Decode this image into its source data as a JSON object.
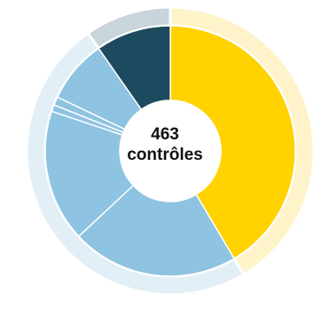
{
  "center": {
    "value": "463",
    "unit": "contrôles"
  },
  "colors": {
    "yellow": "#FFD200",
    "yellow_ring": "#FFF3C9",
    "light_blue": "#8EC3E1",
    "light_blue_ring": "#E3EFF7",
    "dark_blue": "#1D4A5E",
    "dark_blue_ring": "#C8D5DB",
    "separator": "#FFFFFF"
  },
  "chart_data": {
    "type": "pie",
    "total": 463,
    "slices": [
      {
        "value": 192,
        "color": "#FFD200"
      },
      {
        "value": 100,
        "color": "#8EC3E1"
      },
      {
        "value": 79,
        "color": "#8EC3E1"
      },
      {
        "value": 4,
        "color": "#8EC3E1"
      },
      {
        "value": 5,
        "color": "#8EC3E1"
      },
      {
        "value": 38,
        "color": "#8EC3E1"
      },
      {
        "value": 45,
        "color": "#1D4A5E"
      }
    ],
    "outer_ring": [
      {
        "value": 192,
        "color": "#FFF3C9"
      },
      {
        "value": 226,
        "color": "#E3EFF7"
      },
      {
        "value": 45,
        "color": "#C8D5DB"
      }
    ]
  }
}
